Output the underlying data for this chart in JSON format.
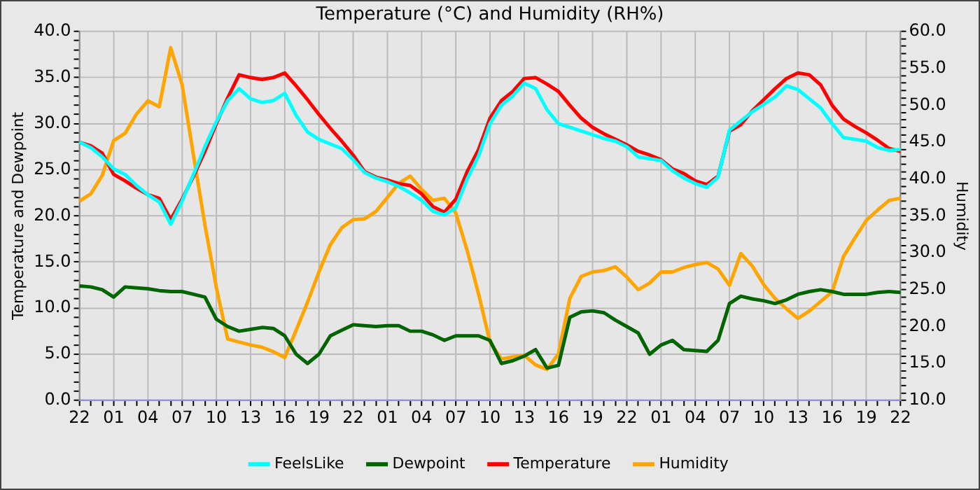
{
  "chart_data": {
    "type": "line",
    "title": "Temperature (°C) and Humidity (RH%)",
    "ylabel": "Temperature and Dewpoint",
    "y2label": "Humidity",
    "categories": [
      "22",
      null,
      null,
      "01",
      null,
      null,
      "04",
      null,
      null,
      "07",
      null,
      null,
      "10",
      null,
      null,
      "13",
      null,
      null,
      "16",
      null,
      null,
      "19",
      null,
      null,
      "22",
      null,
      null,
      "01",
      null,
      null,
      "04",
      null,
      null,
      "07",
      null,
      null,
      "10",
      null,
      null,
      "13",
      null,
      null,
      "16",
      null,
      null,
      "19",
      null,
      null,
      "22",
      null,
      null,
      "01",
      null,
      null,
      "04",
      null,
      null,
      "07",
      null,
      null,
      "10",
      null,
      null,
      "13",
      null,
      null,
      "16",
      null,
      null,
      "19",
      null,
      null,
      "22"
    ],
    "ylim": [
      0,
      40
    ],
    "yticks": [
      {
        "value": 0,
        "label": "0.0"
      },
      {
        "value": 1,
        "label": null
      },
      {
        "value": 2,
        "label": null
      },
      {
        "value": 3,
        "label": null
      },
      {
        "value": 4,
        "label": null
      },
      {
        "value": 5,
        "label": "5.0"
      },
      {
        "value": 6,
        "label": null
      },
      {
        "value": 7,
        "label": null
      },
      {
        "value": 8,
        "label": null
      },
      {
        "value": 9,
        "label": null
      },
      {
        "value": 10,
        "label": "10.0"
      },
      {
        "value": 11,
        "label": null
      },
      {
        "value": 12,
        "label": null
      },
      {
        "value": 13,
        "label": null
      },
      {
        "value": 14,
        "label": null
      },
      {
        "value": 15,
        "label": "15.0"
      },
      {
        "value": 16,
        "label": null
      },
      {
        "value": 17,
        "label": null
      },
      {
        "value": 18,
        "label": null
      },
      {
        "value": 19,
        "label": null
      },
      {
        "value": 20,
        "label": "20.0"
      },
      {
        "value": 21,
        "label": null
      },
      {
        "value": 22,
        "label": null
      },
      {
        "value": 23,
        "label": null
      },
      {
        "value": 24,
        "label": null
      },
      {
        "value": 25,
        "label": "25.0"
      },
      {
        "value": 26,
        "label": null
      },
      {
        "value": 27,
        "label": null
      },
      {
        "value": 28,
        "label": null
      },
      {
        "value": 29,
        "label": null
      },
      {
        "value": 30,
        "label": "30.0"
      },
      {
        "value": 31,
        "label": null
      },
      {
        "value": 32,
        "label": null
      },
      {
        "value": 33,
        "label": null
      },
      {
        "value": 34,
        "label": null
      },
      {
        "value": 35,
        "label": "35.0"
      },
      {
        "value": 36,
        "label": null
      },
      {
        "value": 37,
        "label": null
      },
      {
        "value": 38,
        "label": null
      },
      {
        "value": 39,
        "label": null
      },
      {
        "value": 40,
        "label": "40.0"
      }
    ],
    "y2lim": [
      10,
      60
    ],
    "y2ticks": [
      {
        "value": 10,
        "label": "10.0"
      },
      {
        "value": 11,
        "label": null
      },
      {
        "value": 12,
        "label": null
      },
      {
        "value": 13,
        "label": null
      },
      {
        "value": 14,
        "label": null
      },
      {
        "value": 15,
        "label": "15.0"
      },
      {
        "value": 16,
        "label": null
      },
      {
        "value": 17,
        "label": null
      },
      {
        "value": 18,
        "label": null
      },
      {
        "value": 19,
        "label": null
      },
      {
        "value": 20,
        "label": "20.0"
      },
      {
        "value": 21,
        "label": null
      },
      {
        "value": 22,
        "label": null
      },
      {
        "value": 23,
        "label": null
      },
      {
        "value": 24,
        "label": null
      },
      {
        "value": 25,
        "label": "25.0"
      },
      {
        "value": 26,
        "label": null
      },
      {
        "value": 27,
        "label": null
      },
      {
        "value": 28,
        "label": null
      },
      {
        "value": 29,
        "label": null
      },
      {
        "value": 30,
        "label": "30.0"
      },
      {
        "value": 31,
        "label": null
      },
      {
        "value": 32,
        "label": null
      },
      {
        "value": 33,
        "label": null
      },
      {
        "value": 34,
        "label": null
      },
      {
        "value": 35,
        "label": "35.0"
      },
      {
        "value": 36,
        "label": null
      },
      {
        "value": 37,
        "label": null
      },
      {
        "value": 38,
        "label": null
      },
      {
        "value": 39,
        "label": null
      },
      {
        "value": 40,
        "label": "40.0"
      },
      {
        "value": 41,
        "label": null
      },
      {
        "value": 42,
        "label": null
      },
      {
        "value": 43,
        "label": null
      },
      {
        "value": 44,
        "label": null
      },
      {
        "value": 45,
        "label": "45.0"
      },
      {
        "value": 46,
        "label": null
      },
      {
        "value": 47,
        "label": null
      },
      {
        "value": 48,
        "label": null
      },
      {
        "value": 49,
        "label": null
      },
      {
        "value": 50,
        "label": "50.0"
      },
      {
        "value": 51,
        "label": null
      },
      {
        "value": 52,
        "label": null
      },
      {
        "value": 53,
        "label": null
      },
      {
        "value": 54,
        "label": null
      },
      {
        "value": 55,
        "label": "55.0"
      },
      {
        "value": 56,
        "label": null
      },
      {
        "value": 57,
        "label": null
      },
      {
        "value": 58,
        "label": null
      },
      {
        "value": 59,
        "label": null
      },
      {
        "value": 60,
        "label": "60.0"
      }
    ],
    "grid": true,
    "legend": "bottom",
    "marker": "none",
    "line_style": "solid",
    "series": [
      {
        "name": "FeelsLike",
        "color": "#00ffff",
        "values": [
          28.0,
          27.4,
          26.4,
          25.1,
          24.5,
          23.3,
          22.3,
          21.5,
          19.1,
          21.6,
          24.5,
          27.5,
          30.2,
          32.5,
          33.8,
          32.7,
          32.3,
          32.5,
          33.3,
          30.9,
          29.1,
          28.3,
          27.8,
          27.3,
          26.1,
          24.7,
          24.1,
          23.7,
          23.2,
          22.5,
          21.7,
          20.5,
          20.1,
          20.9,
          24.0,
          26.5,
          30.0,
          32.0,
          33.0,
          34.4,
          33.8,
          31.5,
          30.0,
          29.6,
          29.2,
          28.8,
          28.4,
          28.1,
          27.5,
          26.4,
          26.2,
          26.0,
          24.9,
          24.1,
          23.5,
          23.1,
          24.2,
          29.3,
          30.3,
          31.3,
          32.1,
          32.9,
          34.1,
          33.7,
          32.7,
          31.7,
          30.0,
          28.5,
          28.3,
          28.1,
          27.4,
          27.1,
          27.2
        ]
      },
      {
        "name": "Dewpoint",
        "color": "#006400",
        "values": [
          12.4,
          12.3,
          12,
          11.2,
          12.3,
          12.2,
          12.1,
          11.9,
          11.8,
          11.8,
          11.5,
          11.2,
          8.8,
          8,
          7.5,
          7.7,
          7.9,
          7.8,
          7,
          5,
          4,
          5,
          7,
          7.6,
          8.2,
          8.1,
          8,
          8.1,
          8.1,
          7.5,
          7.5,
          7.1,
          6.5,
          7,
          7,
          7,
          6.5,
          4,
          4.3,
          4.8,
          5.5,
          3.5,
          3.8,
          9,
          9.6,
          9.7,
          9.5,
          8.7,
          8,
          7.3,
          5,
          6,
          6.5,
          5.5,
          5.4,
          5.3,
          6.5,
          10.5,
          11.3,
          11,
          10.8,
          10.5,
          10.9,
          11.5,
          11.8,
          12,
          11.8,
          11.5,
          11.5,
          11.5,
          11.7,
          11.8,
          11.7
        ]
      },
      {
        "name": "Temperature",
        "color": "#ff0000",
        "values": [
          28.0,
          27.6,
          26.8,
          24.5,
          23.8,
          23.0,
          22.3,
          21.9,
          19.6,
          21.8,
          24.3,
          27.0,
          30.0,
          32.8,
          35.3,
          35.0,
          34.8,
          35.0,
          35.5,
          34.1,
          32.6,
          31.0,
          29.5,
          28.1,
          26.6,
          24.8,
          24.2,
          23.9,
          23.5,
          23.3,
          22.4,
          21.0,
          20.4,
          21.8,
          24.8,
          27.2,
          30.6,
          32.5,
          33.5,
          34.9,
          35.0,
          34.3,
          33.5,
          32.0,
          30.6,
          29.6,
          28.9,
          28.3,
          27.7,
          27.0,
          26.6,
          26.1,
          25.1,
          24.6,
          23.8,
          23.4,
          24.3,
          29.2,
          29.9,
          31.4,
          32.6,
          33.8,
          34.9,
          35.5,
          35.3,
          34.2,
          32.0,
          30.5,
          29.7,
          29.0,
          28.2,
          27.3,
          27.0
        ]
      },
      {
        "name": "Humidity",
        "color": "#ffa500",
        "axis": "y2",
        "values": [
          37.0,
          38.0,
          40.5,
          45.2,
          46.2,
          48.8,
          50.6,
          49.8,
          57.8,
          52.8,
          43.2,
          33.8,
          25.3,
          18.3,
          17.9,
          17.5,
          17.2,
          16.6,
          15.8,
          19.5,
          23.3,
          27.4,
          31.1,
          33.4,
          34.5,
          34.6,
          35.6,
          37.5,
          39.4,
          40.4,
          38.6,
          37.1,
          37.4,
          35.4,
          30.3,
          24.4,
          17.9,
          15.6,
          15.9,
          16.1,
          14.8,
          14.2,
          16.3,
          23.8,
          26.8,
          27.4,
          27.6,
          28.1,
          26.7,
          25.0,
          25.9,
          27.4,
          27.4,
          28.0,
          28.4,
          28.7,
          27.8,
          25.6,
          29.9,
          28.2,
          25.7,
          23.8,
          22.4,
          21.1,
          22.1,
          23.4,
          24.7,
          29.5,
          32.0,
          34.4,
          35.8,
          37.1,
          37.4
        ]
      }
    ]
  }
}
